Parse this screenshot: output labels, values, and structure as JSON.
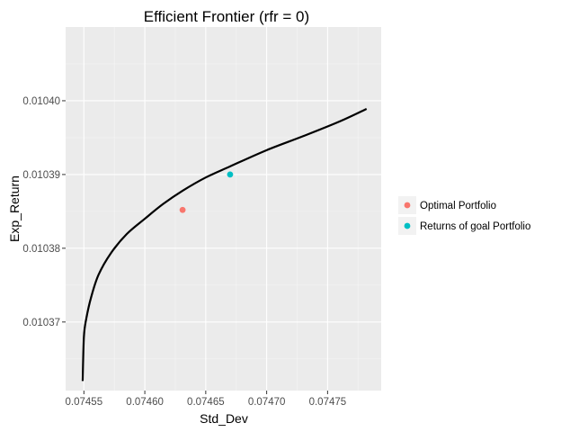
{
  "chart_data": {
    "type": "line",
    "title": "Efficient Frontier (rfr = 0)",
    "xlabel": "Std_Dev",
    "ylabel": "Exp_Return",
    "xlim": [
      0.074535,
      0.074794
    ],
    "ylim": [
      0.0103607,
      0.01041
    ],
    "x_ticks": [
      0.07455,
      0.0746,
      0.07465,
      0.0747,
      0.07475
    ],
    "x_tick_labels": [
      "0.07455",
      "0.07460",
      "0.07465",
      "0.07470",
      "0.07475"
    ],
    "y_ticks": [
      0.01037,
      0.01038,
      0.01039,
      0.0104
    ],
    "y_tick_labels": [
      "0.01037",
      "0.01038",
      "0.01039",
      "0.01040"
    ],
    "grid": true,
    "legend_position": "right",
    "series": [
      {
        "values": [
          [
            0.074549,
            0.010362
          ],
          [
            0.07455,
            0.010368
          ],
          [
            0.074552,
            0.0103705
          ],
          [
            0.074556,
            0.0103734
          ],
          [
            0.074562,
            0.0103764
          ],
          [
            0.074572,
            0.0103793
          ],
          [
            0.074585,
            0.0103819
          ],
          [
            0.0746,
            0.010384
          ],
          [
            0.074615,
            0.010386
          ],
          [
            0.074631,
            0.0103878
          ],
          [
            0.07465,
            0.0103896
          ],
          [
            0.07467,
            0.0103911
          ],
          [
            0.0747,
            0.0103933
          ],
          [
            0.07473,
            0.0103952
          ],
          [
            0.07476,
            0.0103972
          ],
          [
            0.074782,
            0.0103989
          ]
        ],
        "color": "#000000"
      }
    ],
    "points": [
      {
        "name": "Optimal Portfolio",
        "x": 0.074631,
        "y": 0.0103852,
        "color": "#F8766D"
      },
      {
        "name": "Returns of goal Portfolio",
        "x": 0.07467,
        "y": 0.01039,
        "color": "#00BFC4"
      }
    ]
  },
  "colors": {
    "panel_background": "#EBEBEB",
    "grid_major": "#FFFFFF",
    "grid_minor": "#F5F5F5",
    "line": "#000000"
  }
}
